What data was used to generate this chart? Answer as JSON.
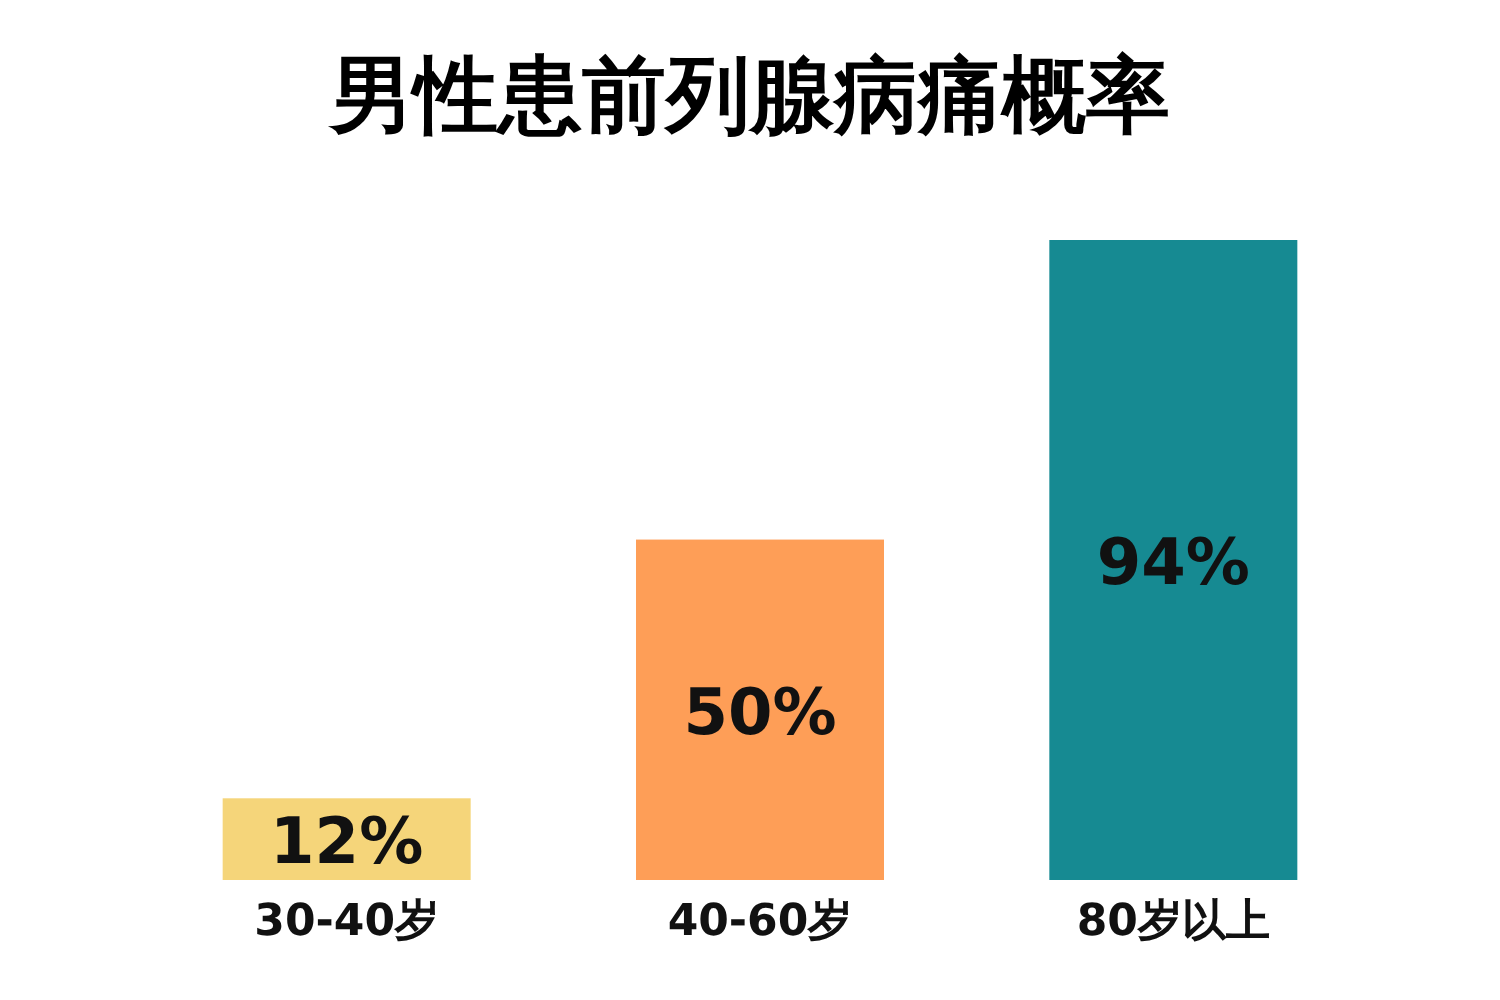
{
  "chart_data": {
    "type": "bar",
    "title": "男性患前列腺病痛概率",
    "categories": [
      "30-40岁",
      "40-60岁",
      "80岁以上"
    ],
    "values": [
      12,
      50,
      94
    ],
    "colors": [
      "#f5d57a",
      "#fe9e57",
      "#168a92"
    ],
    "value_labels": [
      "12%",
      "50%",
      "94%"
    ]
  }
}
